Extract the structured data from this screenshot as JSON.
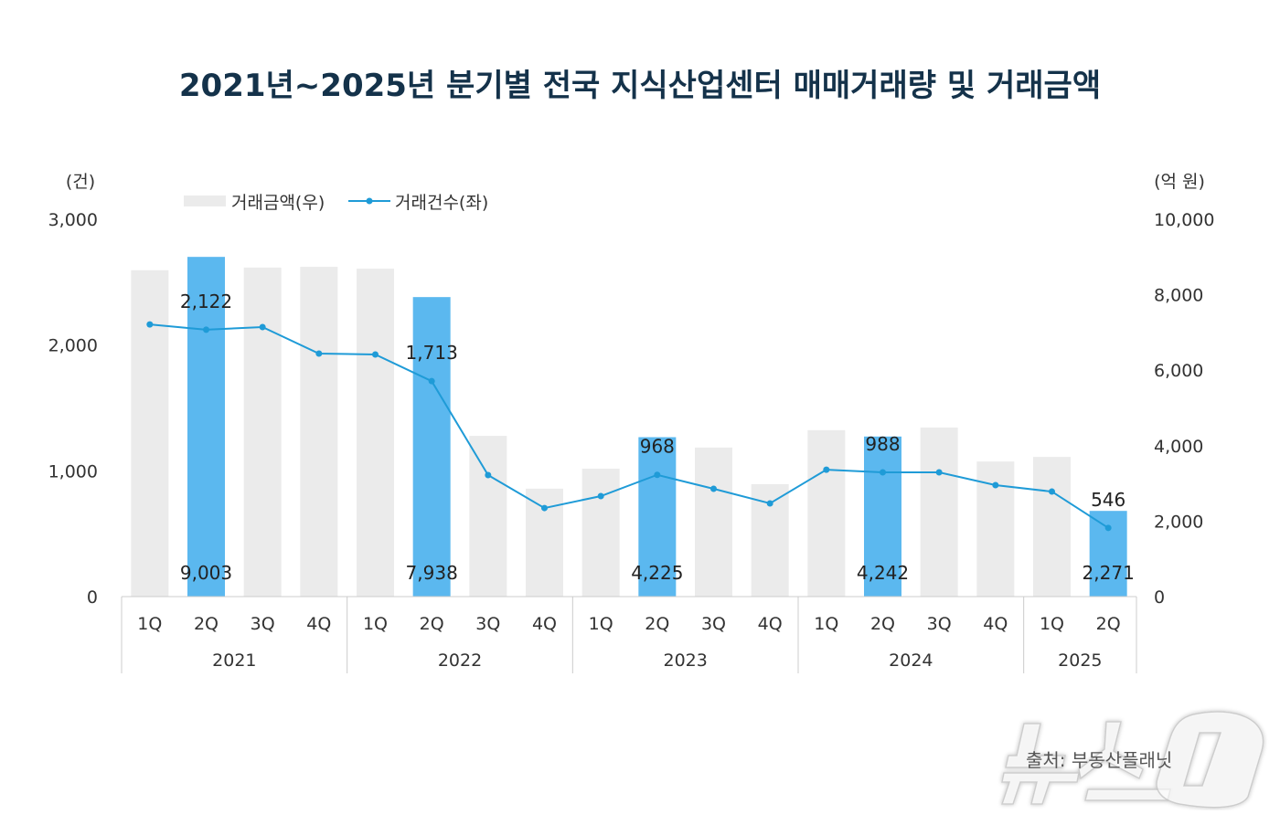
{
  "title": "2021년~2025년 분기별 전국 지식산업센터 매매거래량 및 거래금액",
  "source": "출처: 부동산플래닛",
  "watermark": "뉴스1",
  "chart_data": {
    "type": "bar+line",
    "title": "2021년~2025년 분기별 전국 지식산업센터 매매거래량 및 거래금액",
    "left_axis": {
      "unit": "(건)",
      "range": [
        0,
        3000
      ],
      "ticks": [
        "0",
        "1,000",
        "2,000",
        "3,000"
      ]
    },
    "right_axis": {
      "unit": "(억 원)",
      "range": [
        0,
        10000
      ],
      "ticks": [
        "0",
        "2,000",
        "4,000",
        "6,000",
        "8,000",
        "10,000"
      ]
    },
    "legend": {
      "placement": "top-left",
      "entries": [
        "거래금액(우)",
        "거래건수(좌)"
      ]
    },
    "grid": false,
    "quarters": [
      "1Q",
      "2Q",
      "3Q",
      "4Q",
      "1Q",
      "2Q",
      "3Q",
      "4Q",
      "1Q",
      "2Q",
      "3Q",
      "4Q",
      "1Q",
      "2Q",
      "3Q",
      "4Q",
      "1Q",
      "2Q"
    ],
    "years": [
      {
        "label": "2021",
        "span": 4
      },
      {
        "label": "2022",
        "span": 4
      },
      {
        "label": "2023",
        "span": 4
      },
      {
        "label": "2024",
        "span": 4
      },
      {
        "label": "2025",
        "span": 2
      }
    ],
    "series": [
      {
        "name": "거래금액(우)",
        "type": "bar",
        "axis": "right",
        "values": [
          8650,
          9003,
          8720,
          8740,
          8690,
          7938,
          4260,
          2860,
          3390,
          4225,
          3950,
          2980,
          4410,
          4242,
          4480,
          3580,
          3700,
          2271
        ],
        "labels": {
          "1": "9,003",
          "5": "7,938",
          "9": "4,225",
          "13": "4,242",
          "17": "2,271"
        }
      },
      {
        "name": "거래건수(좌)",
        "type": "line",
        "axis": "left",
        "values": [
          2164,
          2122,
          2143,
          1932,
          1925,
          1713,
          966,
          704,
          799,
          968,
          857,
          741,
          1009,
          988,
          988,
          886,
          835,
          546
        ],
        "labels": {
          "1": "2,122",
          "5": "1,713",
          "9": "968",
          "13": "988",
          "17": "546"
        }
      }
    ],
    "colors": {
      "bar": "#ebebeb",
      "bar_highlight": "#5bb8ef",
      "line": "#1f9bd7",
      "title": "#14324a"
    },
    "highlighted_indices": [
      1,
      5,
      9,
      13,
      17
    ]
  }
}
